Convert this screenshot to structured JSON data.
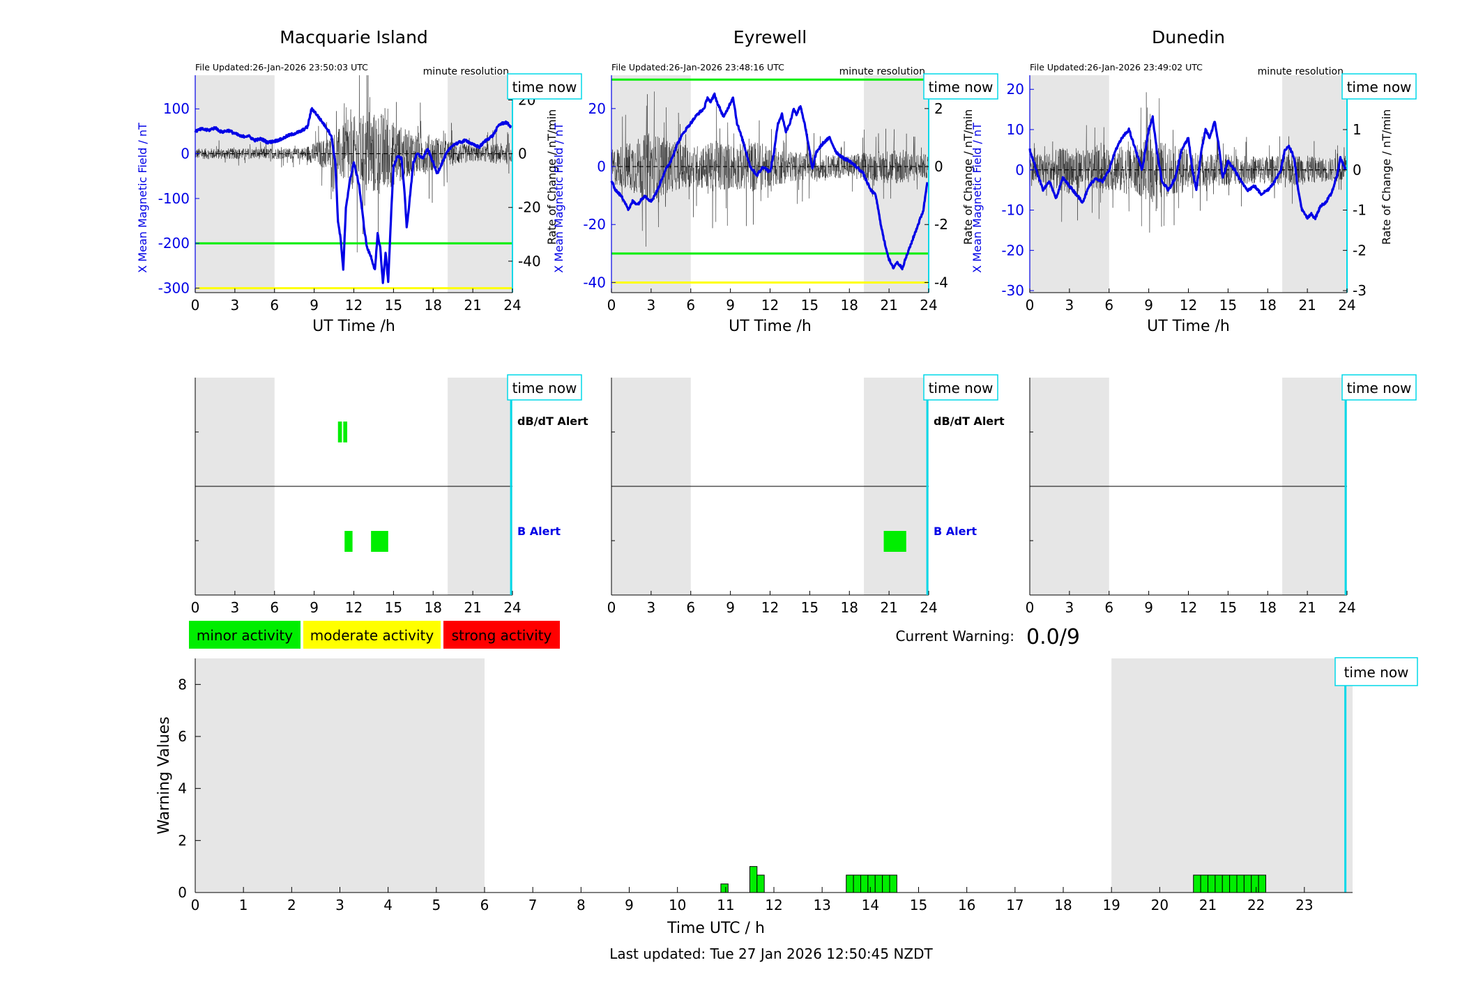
{
  "colors": {
    "field": "#0000e6",
    "rate": "#000000",
    "minor": "#00ee00",
    "moderate": "#ffff00",
    "strong": "#ff0000",
    "night": "#e6e6e6",
    "now": "#00d8e8"
  },
  "common": {
    "time_now_label": "time now",
    "resolution_label": "minute resolution",
    "xlabel_top": "UT Time /h",
    "ylabel_left": "X Mean Magnetic Field / nT",
    "ylabel_right": "Rate of Change / nT/min",
    "dbdt_alert_label": "dB/dT Alert",
    "b_alert_label": "B Alert",
    "x_ticks": [
      0,
      3,
      6,
      9,
      12,
      15,
      18,
      21,
      24
    ]
  },
  "stations": [
    {
      "name": "Macquarie Island",
      "file_updated": "File Updated:26-Jan-2026 23:50:03 UTC",
      "ylim": [
        -310,
        175
      ],
      "y_ticks": [
        100,
        0,
        -100,
        -200,
        -300
      ],
      "rate_lim": [
        -51.7,
        29.2
      ],
      "rate_ticks": [
        20,
        0,
        -20,
        -40
      ],
      "thresholds": [
        {
          "value": -200,
          "color": "minor"
        },
        {
          "value": -300,
          "color": "moderate"
        }
      ],
      "night": [
        [
          0,
          6
        ],
        [
          19.1,
          24
        ]
      ],
      "now": 23.9,
      "field": [
        [
          0,
          50
        ],
        [
          0.5,
          55
        ],
        [
          1,
          52
        ],
        [
          1.5,
          58
        ],
        [
          2,
          48
        ],
        [
          2.5,
          52
        ],
        [
          3,
          45
        ],
        [
          3.5,
          38
        ],
        [
          4,
          40
        ],
        [
          4.5,
          30
        ],
        [
          5,
          33
        ],
        [
          5.5,
          25
        ],
        [
          6,
          28
        ],
        [
          6.5,
          32
        ],
        [
          7,
          40
        ],
        [
          7.5,
          45
        ],
        [
          8,
          50
        ],
        [
          8.5,
          60
        ],
        [
          8.8,
          100
        ],
        [
          9,
          95
        ],
        [
          9.5,
          75
        ],
        [
          10,
          55
        ],
        [
          10.3,
          40
        ],
        [
          10.6,
          -20
        ],
        [
          10.8,
          -150
        ],
        [
          11,
          -190
        ],
        [
          11.2,
          -260
        ],
        [
          11.4,
          -120
        ],
        [
          11.7,
          -60
        ],
        [
          12,
          -20
        ],
        [
          12.4,
          -70
        ],
        [
          12.8,
          -170
        ],
        [
          13,
          -210
        ],
        [
          13.3,
          -230
        ],
        [
          13.6,
          -260
        ],
        [
          13.8,
          -180
        ],
        [
          14,
          -210
        ],
        [
          14.2,
          -290
        ],
        [
          14.4,
          -220
        ],
        [
          14.6,
          -285
        ],
        [
          14.8,
          -150
        ],
        [
          15,
          -30
        ],
        [
          15.3,
          -5
        ],
        [
          15.6,
          -10
        ],
        [
          15.8,
          -70
        ],
        [
          16,
          -165
        ],
        [
          16.2,
          -110
        ],
        [
          16.5,
          -20
        ],
        [
          16.8,
          0
        ],
        [
          17.2,
          -10
        ],
        [
          17.6,
          10
        ],
        [
          18,
          -20
        ],
        [
          18.3,
          -45
        ],
        [
          18.6,
          -25
        ],
        [
          19,
          0
        ],
        [
          19.5,
          20
        ],
        [
          20,
          25
        ],
        [
          20.5,
          30
        ],
        [
          21,
          20
        ],
        [
          21.5,
          15
        ],
        [
          22,
          30
        ],
        [
          22.5,
          40
        ],
        [
          23,
          65
        ],
        [
          23.5,
          70
        ],
        [
          23.9,
          60
        ]
      ],
      "rate_stats": [
        [
          0,
          2
        ],
        [
          1,
          2
        ],
        [
          2,
          2
        ],
        [
          3,
          2
        ],
        [
          4,
          2
        ],
        [
          5,
          2
        ],
        [
          6,
          2
        ],
        [
          7,
          2
        ],
        [
          8,
          2
        ],
        [
          9,
          4
        ],
        [
          10,
          6
        ],
        [
          11,
          10
        ],
        [
          12,
          14
        ],
        [
          13,
          15
        ],
        [
          14,
          16
        ],
        [
          15,
          12
        ],
        [
          16,
          9
        ],
        [
          17,
          8
        ],
        [
          18,
          7
        ],
        [
          19,
          5
        ],
        [
          20,
          4
        ],
        [
          21,
          3
        ],
        [
          22,
          3
        ],
        [
          23,
          4
        ],
        [
          24,
          3
        ]
      ],
      "dbdt_alerts": [
        [
          10.8,
          11.1
        ],
        [
          11.2,
          11.5
        ]
      ],
      "b_alerts": [
        [
          11.3,
          11.9
        ],
        [
          13.3,
          14.6
        ]
      ]
    },
    {
      "name": "Eyrewell",
      "file_updated": "File Updated:26-Jan-2026 23:48:16 UTC",
      "ylim": [
        -43.5,
        31.5
      ],
      "y_ticks": [
        20,
        0,
        -20,
        -40
      ],
      "rate_lim": [
        -4.35,
        3.15
      ],
      "rate_ticks": [
        2,
        0,
        -2,
        -4
      ],
      "thresholds": [
        {
          "value": 30,
          "color": "minor"
        },
        {
          "value": -30,
          "color": "minor"
        },
        {
          "value": -40,
          "color": "moderate"
        }
      ],
      "night": [
        [
          0,
          6
        ],
        [
          19.1,
          24
        ]
      ],
      "now": 23.9,
      "field": [
        [
          0,
          -5
        ],
        [
          0.3,
          -8
        ],
        [
          0.7,
          -10
        ],
        [
          1,
          -12
        ],
        [
          1.3,
          -15
        ],
        [
          1.6,
          -12
        ],
        [
          2,
          -13
        ],
        [
          2.5,
          -10
        ],
        [
          3,
          -12
        ],
        [
          3.5,
          -8
        ],
        [
          4,
          -2
        ],
        [
          4.5,
          2
        ],
        [
          5,
          8
        ],
        [
          5.5,
          12
        ],
        [
          6,
          15
        ],
        [
          6.5,
          18
        ],
        [
          7,
          20
        ],
        [
          7.3,
          24
        ],
        [
          7.5,
          22
        ],
        [
          7.8,
          25
        ],
        [
          8,
          22
        ],
        [
          8.5,
          17
        ],
        [
          9,
          22
        ],
        [
          9.2,
          24
        ],
        [
          9.5,
          15
        ],
        [
          10,
          8
        ],
        [
          10.5,
          0
        ],
        [
          11,
          -3
        ],
        [
          11.5,
          0
        ],
        [
          12,
          -2
        ],
        [
          12.3,
          5
        ],
        [
          12.6,
          15
        ],
        [
          12.9,
          18
        ],
        [
          13.2,
          12
        ],
        [
          13.5,
          15
        ],
        [
          13.8,
          20
        ],
        [
          14,
          18
        ],
        [
          14.3,
          21
        ],
        [
          14.6,
          15
        ],
        [
          15,
          5
        ],
        [
          15.2,
          -1
        ],
        [
          15.5,
          5
        ],
        [
          16,
          8
        ],
        [
          16.5,
          10
        ],
        [
          17,
          5
        ],
        [
          17.5,
          3
        ],
        [
          18,
          2
        ],
        [
          18.5,
          0
        ],
        [
          19,
          -2
        ],
        [
          19.3,
          -5
        ],
        [
          19.6,
          -8
        ],
        [
          20,
          -10
        ],
        [
          20.3,
          -18
        ],
        [
          20.6,
          -25
        ],
        [
          21,
          -32
        ],
        [
          21.3,
          -35
        ],
        [
          21.6,
          -33
        ],
        [
          22,
          -35
        ],
        [
          22.4,
          -30
        ],
        [
          22.8,
          -25
        ],
        [
          23.2,
          -20
        ],
        [
          23.6,
          -15
        ],
        [
          23.9,
          -5
        ]
      ],
      "rate_stats": [
        [
          0,
          0.6
        ],
        [
          1,
          0.8
        ],
        [
          2,
          1
        ],
        [
          3,
          1.2
        ],
        [
          4,
          1
        ],
        [
          5,
          0.8
        ],
        [
          6,
          0.7
        ],
        [
          7,
          0.8
        ],
        [
          8,
          0.9
        ],
        [
          9,
          0.8
        ],
        [
          10,
          0.8
        ],
        [
          11,
          0.9
        ],
        [
          12,
          0.7
        ],
        [
          13,
          0.6
        ],
        [
          14,
          0.5
        ],
        [
          15,
          0.5
        ],
        [
          16,
          0.4
        ],
        [
          17,
          0.4
        ],
        [
          18,
          0.4
        ],
        [
          19,
          0.5
        ],
        [
          20,
          0.5
        ],
        [
          21,
          0.6
        ],
        [
          22,
          0.6
        ],
        [
          23,
          0.5
        ],
        [
          24,
          0.4
        ]
      ],
      "dbdt_alerts": [],
      "b_alerts": [
        [
          20.6,
          22.3
        ]
      ]
    },
    {
      "name": "Dunedin",
      "file_updated": "File Updated:26-Jan-2026 23:49:02 UTC",
      "ylim": [
        -30.5,
        23.5
      ],
      "y_ticks": [
        20,
        10,
        0,
        -10,
        -20,
        -30
      ],
      "rate_lim": [
        -3.05,
        2.35
      ],
      "rate_ticks": [
        2,
        1,
        0,
        -1,
        -2,
        -3
      ],
      "thresholds": [],
      "night": [
        [
          0,
          6
        ],
        [
          19.1,
          24
        ]
      ],
      "now": 23.9,
      "field": [
        [
          0,
          5
        ],
        [
          0.5,
          0
        ],
        [
          1,
          -5
        ],
        [
          1.5,
          -3
        ],
        [
          2,
          -7
        ],
        [
          2.5,
          -2
        ],
        [
          3,
          -4
        ],
        [
          3.5,
          -6
        ],
        [
          4,
          -8
        ],
        [
          4.5,
          -4
        ],
        [
          5,
          -2
        ],
        [
          5.5,
          -3
        ],
        [
          6,
          0
        ],
        [
          6.5,
          5
        ],
        [
          7,
          8
        ],
        [
          7.5,
          10
        ],
        [
          8,
          5
        ],
        [
          8.5,
          0
        ],
        [
          9,
          10
        ],
        [
          9.3,
          13
        ],
        [
          9.6,
          5
        ],
        [
          10,
          -3
        ],
        [
          10.5,
          -5
        ],
        [
          11,
          -2
        ],
        [
          11.5,
          5
        ],
        [
          12,
          8
        ],
        [
          12.3,
          0
        ],
        [
          12.6,
          -5
        ],
        [
          13,
          5
        ],
        [
          13.3,
          10
        ],
        [
          13.6,
          8
        ],
        [
          14,
          12
        ],
        [
          14.3,
          6
        ],
        [
          14.6,
          -2
        ],
        [
          15,
          2
        ],
        [
          15.5,
          0
        ],
        [
          16,
          -3
        ],
        [
          16.5,
          -5
        ],
        [
          17,
          -4
        ],
        [
          17.5,
          -6
        ],
        [
          18,
          -5
        ],
        [
          18.5,
          -3
        ],
        [
          19,
          0
        ],
        [
          19.3,
          5
        ],
        [
          19.6,
          6
        ],
        [
          20,
          3
        ],
        [
          20.3,
          -5
        ],
        [
          20.6,
          -10
        ],
        [
          21,
          -12
        ],
        [
          21.3,
          -11
        ],
        [
          21.6,
          -12
        ],
        [
          22,
          -9
        ],
        [
          22.4,
          -8
        ],
        [
          22.8,
          -6
        ],
        [
          23.2,
          -2
        ],
        [
          23.5,
          3
        ],
        [
          23.9,
          0
        ]
      ],
      "rate_stats": [
        [
          0,
          0.4
        ],
        [
          1,
          0.4
        ],
        [
          2,
          0.5
        ],
        [
          3,
          0.6
        ],
        [
          4,
          0.5
        ],
        [
          5,
          0.5
        ],
        [
          6,
          0.5
        ],
        [
          7,
          0.6
        ],
        [
          8,
          0.6
        ],
        [
          9,
          0.8
        ],
        [
          10,
          0.7
        ],
        [
          11,
          0.6
        ],
        [
          12,
          0.5
        ],
        [
          13,
          0.4
        ],
        [
          14,
          0.4
        ],
        [
          15,
          0.4
        ],
        [
          16,
          0.35
        ],
        [
          17,
          0.35
        ],
        [
          18,
          0.35
        ],
        [
          19,
          0.35
        ],
        [
          20,
          0.4
        ],
        [
          21,
          0.35
        ],
        [
          22,
          0.3
        ],
        [
          23,
          0.3
        ],
        [
          24,
          0.3
        ]
      ],
      "dbdt_alerts": [],
      "b_alerts": []
    }
  ],
  "legend": {
    "minor": "minor activity",
    "moderate": "moderate activity",
    "strong": "strong activity"
  },
  "current_warning": {
    "label": "Current Warning:",
    "value": "0.0/9"
  },
  "chart_data": {
    "type": "bar",
    "xlabel": "Time UTC / h",
    "ylabel": "Warning Values",
    "xlim": [
      0,
      24
    ],
    "ylim": [
      0,
      9
    ],
    "x_ticks": [
      0,
      1,
      2,
      3,
      4,
      5,
      6,
      7,
      8,
      9,
      10,
      11,
      12,
      13,
      14,
      15,
      16,
      17,
      18,
      19,
      20,
      21,
      22,
      23
    ],
    "y_ticks": [
      0,
      2,
      4,
      6,
      8
    ],
    "night": [
      [
        0,
        6
      ],
      [
        19,
        24
      ]
    ],
    "now": 23.85,
    "bar_width_h": 0.15,
    "bars": [
      {
        "x": 10.9,
        "value": 0.33
      },
      {
        "x": 11.5,
        "value": 1.0
      },
      {
        "x": 11.65,
        "value": 0.67
      },
      {
        "x": 13.5,
        "value": 0.67
      },
      {
        "x": 13.65,
        "value": 0.67
      },
      {
        "x": 13.8,
        "value": 0.67
      },
      {
        "x": 13.95,
        "value": 0.67
      },
      {
        "x": 14.1,
        "value": 0.67
      },
      {
        "x": 14.25,
        "value": 0.67
      },
      {
        "x": 14.4,
        "value": 0.67
      },
      {
        "x": 20.7,
        "value": 0.67
      },
      {
        "x": 20.85,
        "value": 0.67
      },
      {
        "x": 21.0,
        "value": 0.67
      },
      {
        "x": 21.15,
        "value": 0.67
      },
      {
        "x": 21.3,
        "value": 0.67
      },
      {
        "x": 21.45,
        "value": 0.67
      },
      {
        "x": 21.6,
        "value": 0.67
      },
      {
        "x": 21.75,
        "value": 0.67
      },
      {
        "x": 21.9,
        "value": 0.67
      },
      {
        "x": 22.05,
        "value": 0.67
      }
    ]
  },
  "footer": {
    "last_updated": "Last updated: Tue 27 Jan 2026 12:50:45 NZDT"
  }
}
